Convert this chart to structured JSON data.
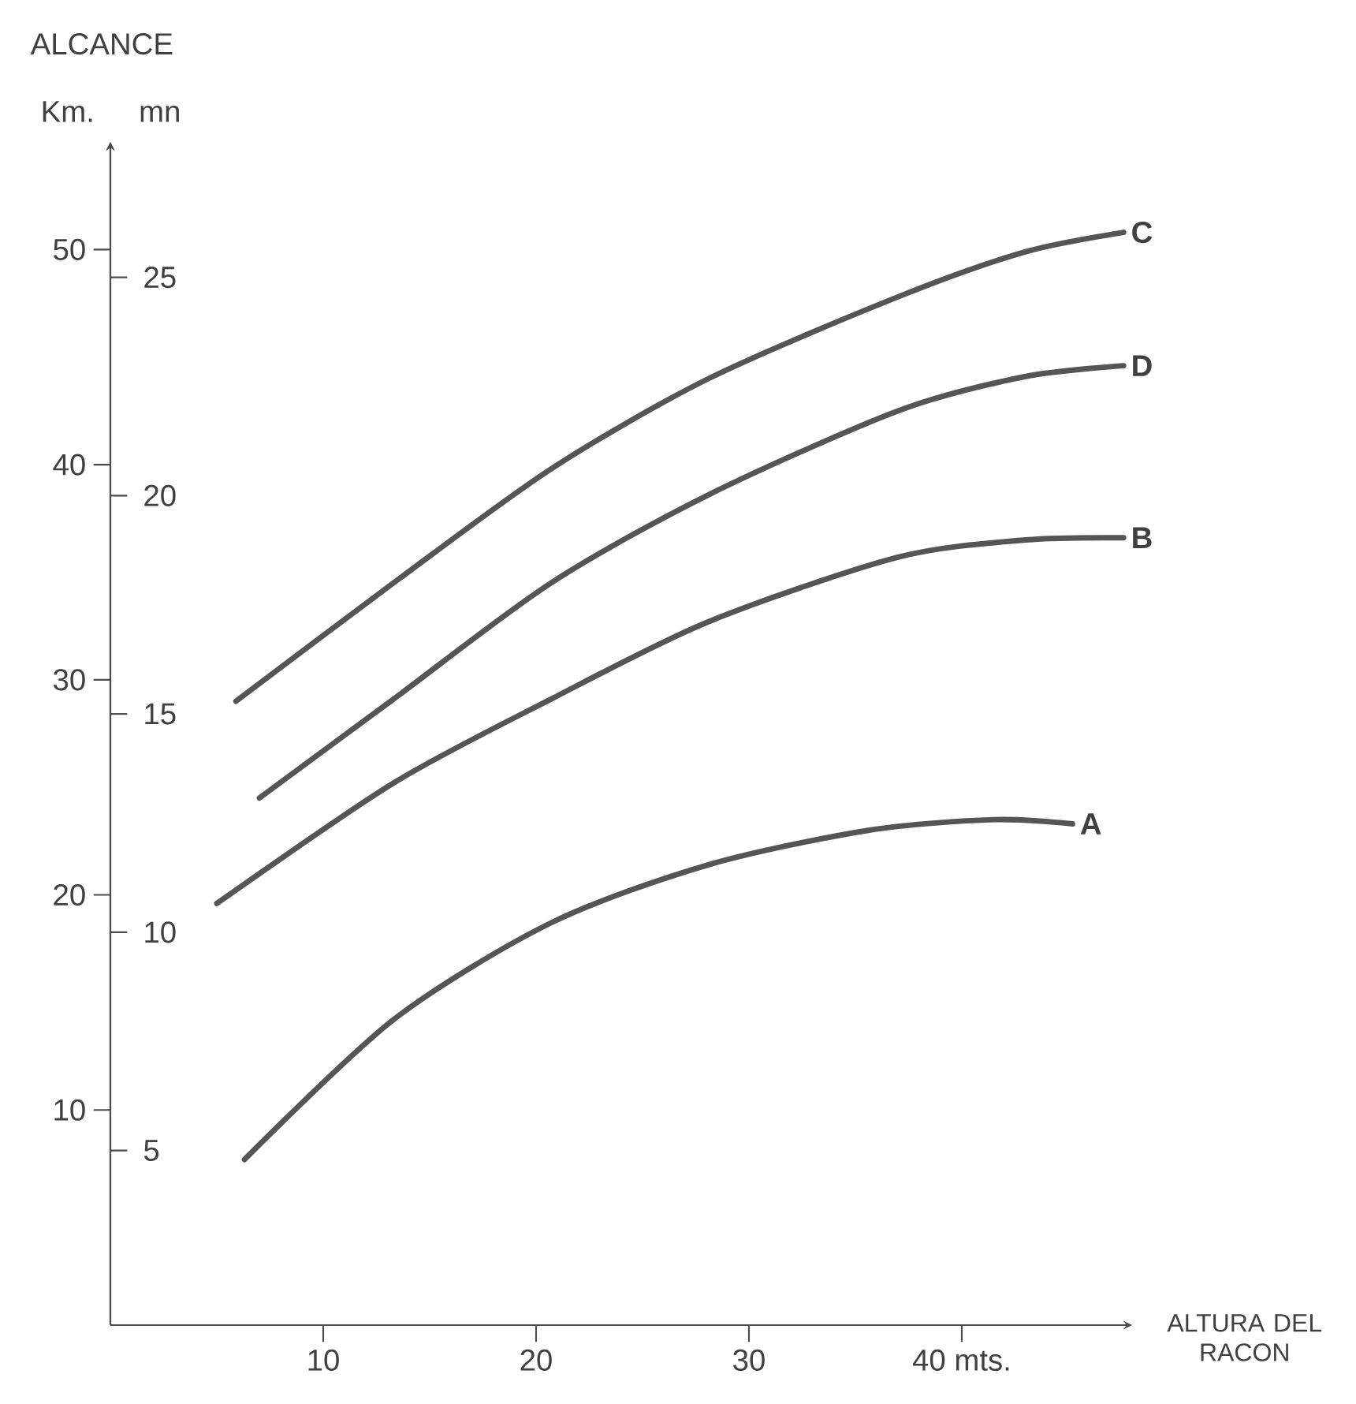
{
  "chart_data": {
    "type": "line",
    "title": "ALCANCE",
    "ylabel": "Km.",
    "y2label": "mn",
    "xlabel": "ALTURA DEL RACON",
    "xlim": [
      0,
      48
    ],
    "ylim": [
      0,
      55
    ],
    "y2lim": [
      1,
      28.1
    ],
    "xticks": [
      10,
      20,
      30,
      {
        "value": 40,
        "label": "40 mts."
      }
    ],
    "yticks": [
      10,
      20,
      30,
      40,
      50
    ],
    "y2ticks": [
      5,
      10,
      15,
      20,
      25
    ],
    "line_style": "solid",
    "marker": "none",
    "grid": false,
    "series": [
      {
        "name": "C",
        "color": "#555555",
        "x": [
          5.9,
          13.3,
          20.7,
          28.1,
          37.0,
          43.0,
          47.6
        ],
        "values": [
          29.0,
          34.5,
          39.8,
          44.0,
          47.8,
          49.9,
          50.8
        ]
      },
      {
        "name": "D",
        "color": "#555555",
        "x": [
          7.0,
          13.3,
          20.7,
          28.1,
          37.0,
          43.0,
          47.6
        ],
        "values": [
          24.5,
          29.1,
          34.5,
          38.6,
          42.5,
          44.1,
          44.6
        ]
      },
      {
        "name": "B",
        "color": "#555555",
        "x": [
          5.0,
          13.3,
          20.7,
          28.1,
          37.0,
          43.0,
          47.6
        ],
        "values": [
          19.6,
          25.2,
          29.1,
          32.7,
          35.7,
          36.5,
          36.6
        ]
      },
      {
        "name": "A",
        "color": "#555555",
        "x": [
          6.3,
          13.3,
          20.7,
          28.1,
          35.6,
          41.5,
          45.2
        ],
        "values": [
          7.7,
          14.2,
          18.7,
          21.4,
          23.0,
          23.5,
          23.3
        ]
      }
    ]
  }
}
